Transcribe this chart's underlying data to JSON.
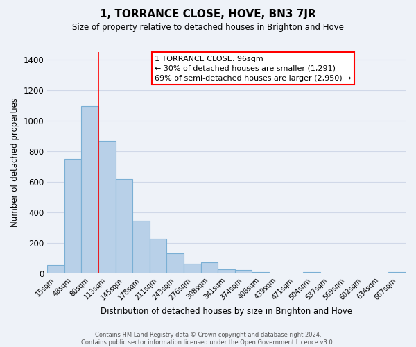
{
  "title": "1, TORRANCE CLOSE, HOVE, BN3 7JR",
  "subtitle": "Size of property relative to detached houses in Brighton and Hove",
  "xlabel": "Distribution of detached houses by size in Brighton and Hove",
  "ylabel": "Number of detached properties",
  "categories": [
    "15sqm",
    "48sqm",
    "80sqm",
    "113sqm",
    "145sqm",
    "178sqm",
    "211sqm",
    "243sqm",
    "276sqm",
    "308sqm",
    "341sqm",
    "374sqm",
    "406sqm",
    "439sqm",
    "471sqm",
    "504sqm",
    "537sqm",
    "569sqm",
    "602sqm",
    "634sqm",
    "667sqm"
  ],
  "values": [
    55,
    750,
    1095,
    870,
    620,
    345,
    225,
    130,
    65,
    70,
    25,
    20,
    10,
    0,
    0,
    10,
    0,
    0,
    0,
    0,
    10
  ],
  "bar_color": "#b8d0e8",
  "bar_edge_color": "#7aafd4",
  "vline_x_index": 2,
  "marker_label": "1 TORRANCE CLOSE: 96sqm",
  "annotation_line1": "← 30% of detached houses are smaller (1,291)",
  "annotation_line2": "69% of semi-detached houses are larger (2,950) →",
  "annotation_box_color": "white",
  "annotation_box_edge_color": "red",
  "vline_color": "red",
  "ylim": [
    0,
    1450
  ],
  "yticks": [
    0,
    200,
    400,
    600,
    800,
    1000,
    1200,
    1400
  ],
  "footer_line1": "Contains HM Land Registry data © Crown copyright and database right 2024.",
  "footer_line2": "Contains public sector information licensed under the Open Government Licence v3.0.",
  "background_color": "#eef2f8",
  "grid_color": "#d0d8e8"
}
